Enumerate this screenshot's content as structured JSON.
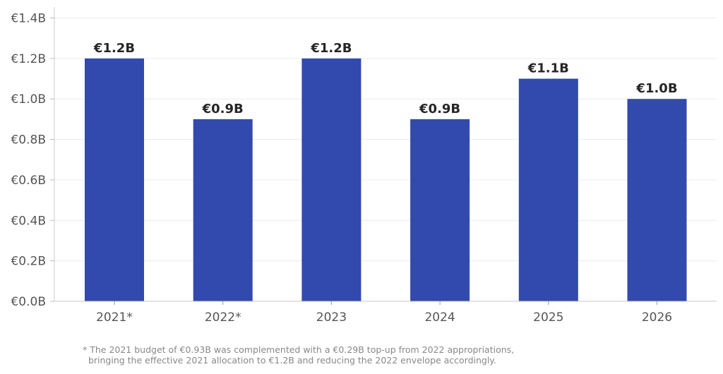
{
  "chart_data": {
    "type": "bar",
    "categories": [
      "2021*",
      "2022*",
      "2023",
      "2024",
      "2025",
      "2026"
    ],
    "values": [
      1.2,
      0.9,
      1.2,
      0.9,
      1.1,
      1.0
    ],
    "data_labels": [
      "€1.2B",
      "€0.9B",
      "€1.2B",
      "€0.9B",
      "€1.1B",
      "€1.0B"
    ],
    "title": "",
    "xlabel": "",
    "ylabel": "",
    "ylim": [
      0,
      1.45
    ],
    "yticks": [
      0,
      0.2,
      0.4,
      0.6,
      0.8,
      1.0,
      1.2,
      1.4
    ],
    "ytick_labels": [
      "€0.0B",
      "€0.2B",
      "€0.4B",
      "€0.6B",
      "€0.8B",
      "€1.0B",
      "€1.2B",
      "€1.4B"
    ],
    "grid": "horizontal",
    "bar_color": "#3249AD",
    "footnote": [
      "* The 2021 budget of €0.93B was complemented with a €0.29B top-up from 2022 appropriations,",
      "  bringing the effective 2021 allocation to €1.2B and reducing the 2022 envelope accordingly."
    ]
  }
}
